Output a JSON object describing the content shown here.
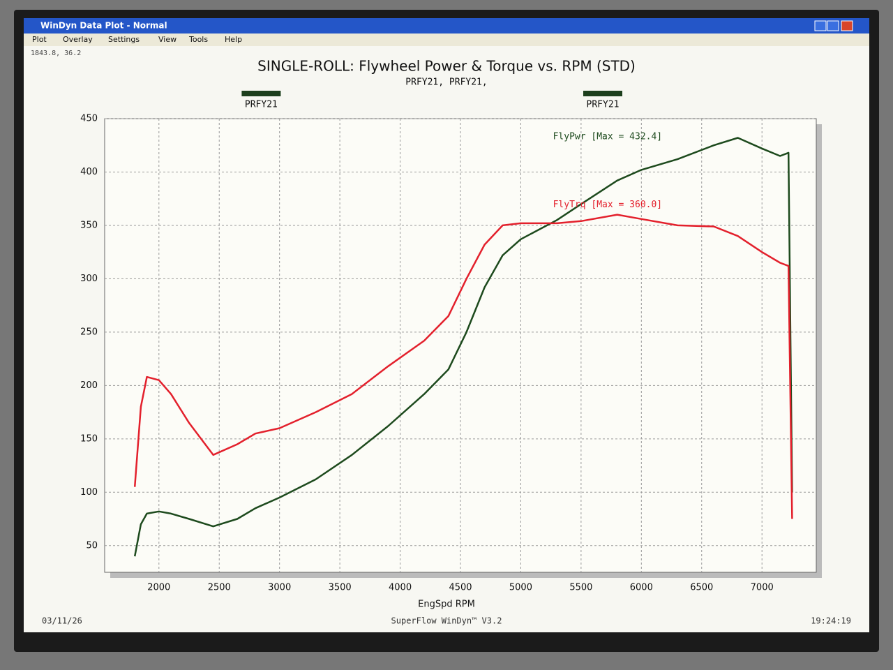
{
  "window": {
    "title": "WinDyn Data Plot - Normal",
    "menu": [
      "Plot",
      "Overlay",
      "Settings",
      "View",
      "Tools",
      "Help"
    ],
    "cursor_readout": "1843.8, 36.2",
    "footer": {
      "date": "03/11/26",
      "app": "SuperFlow WinDyn™ V3.2",
      "time": "19:24:19"
    }
  },
  "chart_data": {
    "type": "line",
    "title": "SINGLE-ROLL: Flywheel Power & Torque vs. RPM (STD)",
    "subtitle": "PRFY21, PRFY21,",
    "x_label": "EngSpd RPM",
    "legend": [
      {
        "label": "PRFY21",
        "color": "#1d3f1d"
      },
      {
        "label": "PRFY21",
        "color": "#1d3f1d"
      }
    ],
    "x": [
      1800,
      1850,
      1900,
      2000,
      2100,
      2250,
      2450,
      2650,
      2800,
      3000,
      3300,
      3600,
      3900,
      4200,
      4400,
      4550,
      4700,
      4850,
      5000,
      5300,
      5500,
      5800,
      6000,
      6300,
      6600,
      6800,
      7000,
      7150,
      7220,
      7250
    ],
    "series": [
      {
        "name": "FlyPwr [Max = 432.4]",
        "color": "#1d4a1d",
        "values": [
          40,
          70,
          80,
          82,
          80,
          75,
          68,
          75,
          85,
          95,
          112,
          135,
          162,
          192,
          215,
          250,
          292,
          322,
          337,
          355,
          370,
          392,
          402,
          412,
          425,
          432,
          422,
          415,
          418,
          100
        ]
      },
      {
        "name": "FlyTrq [Max = 360.0]",
        "color": "#e3202c",
        "values": [
          105,
          180,
          208,
          205,
          192,
          165,
          135,
          145,
          155,
          160,
          175,
          192,
          218,
          242,
          265,
          300,
          332,
          350,
          352,
          352,
          354,
          360,
          356,
          350,
          349,
          340,
          325,
          315,
          312,
          75
        ]
      }
    ],
    "xlim": [
      1550,
      7450
    ],
    "ylim": [
      25,
      450
    ],
    "xticks": [
      2000,
      2500,
      3000,
      3500,
      4000,
      4500,
      5000,
      5500,
      6000,
      6500,
      7000
    ],
    "yticks": [
      50,
      100,
      150,
      200,
      250,
      300,
      350,
      400,
      450
    ],
    "grid": true
  }
}
